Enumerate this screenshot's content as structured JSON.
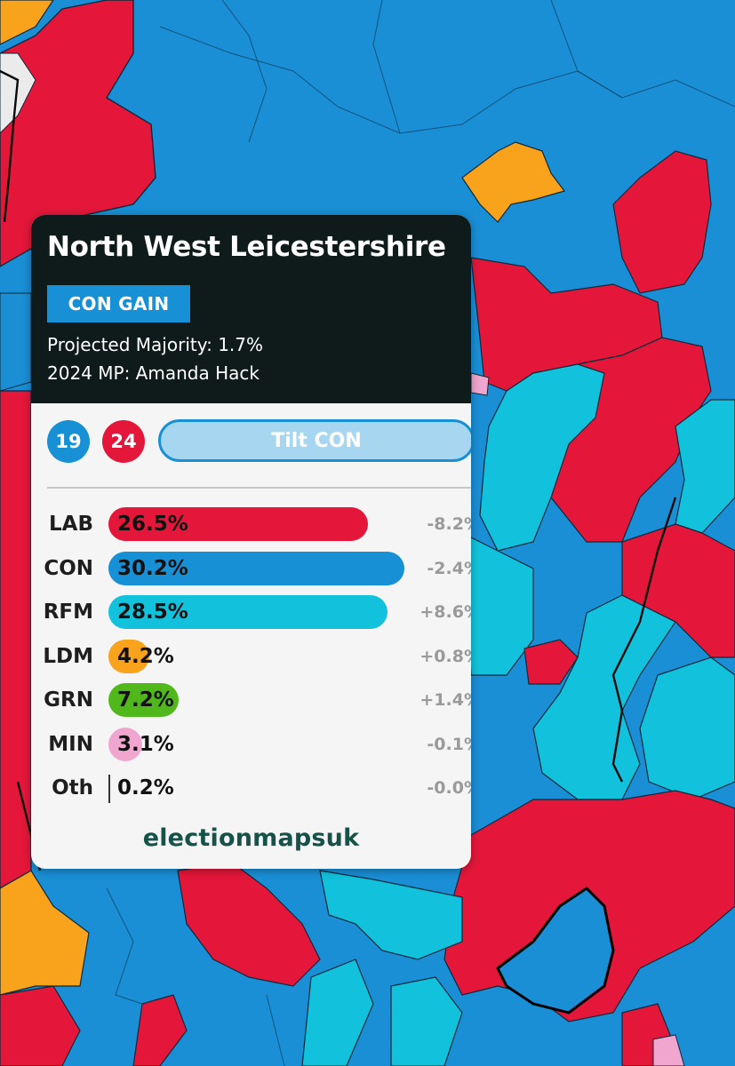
{
  "constituency": {
    "name": "North West Leicestershire",
    "result": "CON GAIN",
    "majority_text": "Projected Majority: 1.7%",
    "mp_text": "2024 MP: Amanda Hack"
  },
  "seats": {
    "con": "19",
    "lab": "24"
  },
  "tilt": "Tilt CON",
  "parties": [
    {
      "name": "LAB",
      "share": 26.5,
      "share_text": "26.5%",
      "change_text": "-8.2%",
      "color": "#e4173a"
    },
    {
      "name": "CON",
      "share": 30.2,
      "share_text": "30.2%",
      "change_text": "-2.4%",
      "color": "#1790d5"
    },
    {
      "name": "RFM",
      "share": 28.5,
      "share_text": "28.5%",
      "change_text": "+8.6%",
      "color": "#12c2dc"
    },
    {
      "name": "LDM",
      "share": 4.2,
      "share_text": "4.2%",
      "change_text": "+0.8%",
      "color": "#f9a21b"
    },
    {
      "name": "GRN",
      "share": 7.2,
      "share_text": "7.2%",
      "change_text": "+1.4%",
      "color": "#50b81a"
    },
    {
      "name": "MIN",
      "share": 3.1,
      "share_text": "3.1%",
      "change_text": "-0.1%",
      "color": "#f0a6cf"
    },
    {
      "name": "Oth",
      "share": 0.2,
      "share_text": "0.2%",
      "change_text": "-0.0%",
      "color": "#333333"
    }
  ],
  "brand": "electionmapsuk",
  "colors": {
    "con": "#1790d5",
    "lab": "#e4173a",
    "reform": "#12c2dc",
    "libdem": "#f9a21b",
    "green": "#50b81a",
    "minor": "#f0a6cf",
    "card_header": "#0f1b1b"
  }
}
